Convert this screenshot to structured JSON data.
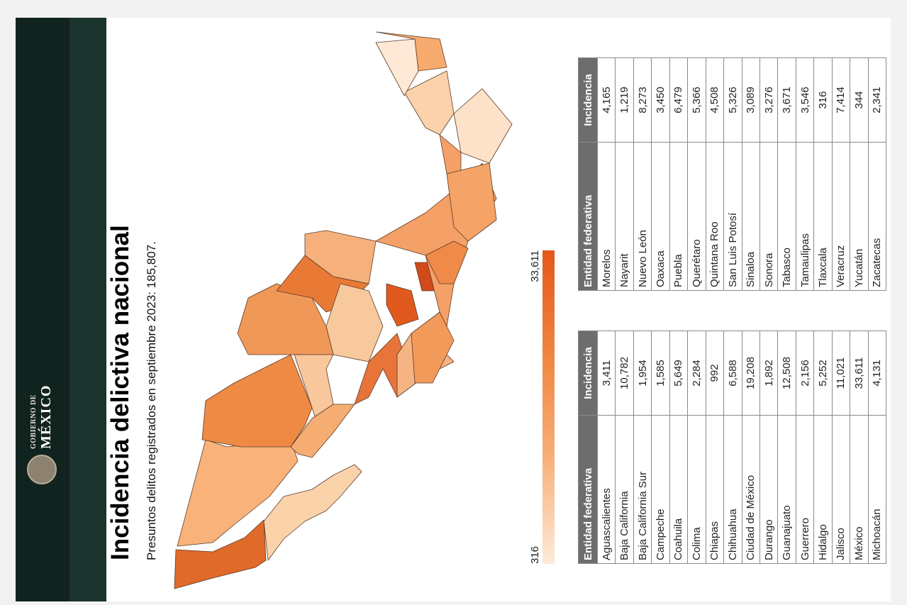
{
  "header": {
    "logo_top": "GOBIERNO DE",
    "logo_main": "MÉXICO",
    "title": "Incidencia delictiva nacional",
    "subtitle": "Presuntos delitos registrados en septiembre 2023: 185,807."
  },
  "legend": {
    "min": "316",
    "max": "33,611"
  },
  "tables": [
    {
      "columns": [
        "Entidad federativa",
        "Incidencia"
      ],
      "rows": [
        [
          "Aguascalientes",
          "3,411"
        ],
        [
          "Baja California",
          "10,782"
        ],
        [
          "Baja California Sur",
          "1,954"
        ],
        [
          "Campeche",
          "1,585"
        ],
        [
          "Coahuila",
          "5,649"
        ],
        [
          "Colima",
          "2,284"
        ],
        [
          "Chiapas",
          "992"
        ],
        [
          "Chihuahua",
          "6,588"
        ],
        [
          "Ciudad de México",
          "19,208"
        ],
        [
          "Durango",
          "1,892"
        ],
        [
          "Guanajuato",
          "12,508"
        ],
        [
          "Guerrero",
          "2,156"
        ],
        [
          "Hidalgo",
          "5,252"
        ],
        [
          "Jalisco",
          "11,021"
        ],
        [
          "México",
          "33,611"
        ],
        [
          "Michoacán",
          "4,131"
        ]
      ]
    },
    {
      "columns": [
        "Entidad federativa",
        "Incidencia"
      ],
      "rows": [
        [
          "Morelos",
          "4,165"
        ],
        [
          "Nayarit",
          "1,219"
        ],
        [
          "Nuevo León",
          "8,273"
        ],
        [
          "Oaxaca",
          "3,450"
        ],
        [
          "Puebla",
          "6,479"
        ],
        [
          "Querétaro",
          "5,366"
        ],
        [
          "Quintana Roo",
          "4,508"
        ],
        [
          "San Luis Potosí",
          "5,326"
        ],
        [
          "Sinaloa",
          "3,089"
        ],
        [
          "Sonora",
          "3,276"
        ],
        [
          "Tabasco",
          "3,671"
        ],
        [
          "Tamaulipas",
          "3,546"
        ],
        [
          "Tlaxcala",
          "316"
        ],
        [
          "Veracruz",
          "7,414"
        ],
        [
          "Yucatán",
          "344"
        ],
        [
          "Zacatecas",
          "2,341"
        ]
      ]
    }
  ]
}
